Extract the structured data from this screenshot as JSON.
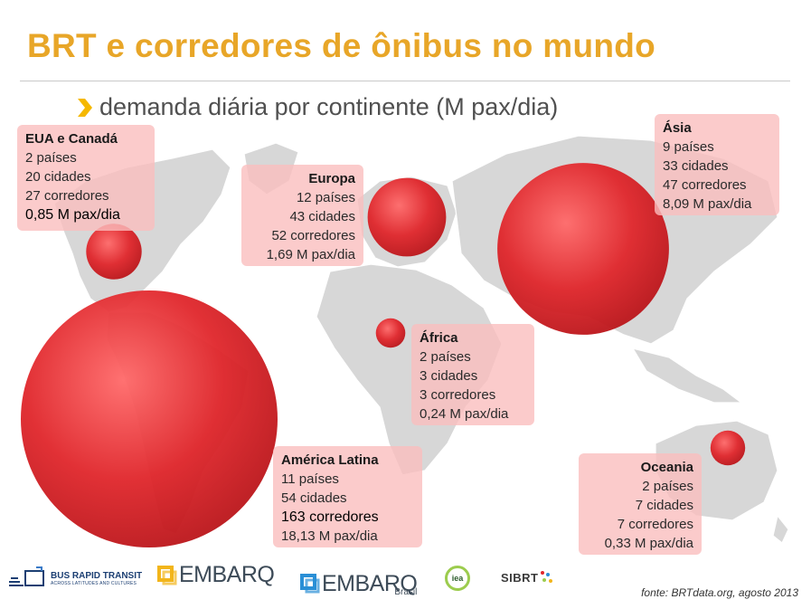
{
  "title": "BRT e corredores de ônibus no mundo",
  "subtitle": "demanda diária por continente (M pax/dia)",
  "source": "fonte: BRTdata.org, agosto 2013",
  "colors": {
    "title": "#e8a628",
    "bubble": "#e0262b",
    "label_box": "#fabebe",
    "land": "#d7d7d7"
  },
  "chart_data": {
    "type": "scatter",
    "title": "BRT e corredores de ônibus no mundo",
    "subtitle": "demanda diária por continente (M pax/dia)",
    "unit": "M pax/dia",
    "series": [
      {
        "name": "EUA e Canadá",
        "lines": [
          "2 países",
          "20 cidades",
          "27 corredores",
          "0,85 M pax/dia"
        ],
        "value": 0.85
      },
      {
        "name": "Europa",
        "lines": [
          "12 países",
          "43 cidades",
          "52 corredores",
          "1,69 M pax/dia"
        ],
        "value": 1.69
      },
      {
        "name": "Ásia",
        "lines": [
          "9 países",
          "33 cidades",
          "47 corredores",
          "8,09 M pax/dia"
        ],
        "value": 8.09
      },
      {
        "name": "África",
        "lines": [
          "2 países",
          "3 cidades",
          "3 corredores",
          "0,24 M pax/dia"
        ],
        "value": 0.24
      },
      {
        "name": "América Latina",
        "lines": [
          "11 países",
          "54 cidades",
          "163 corredores",
          "18,13 M pax/dia"
        ],
        "value": 18.13
      },
      {
        "name": "Oceania",
        "lines": [
          "2 países",
          "7 cidades",
          "7 corredores",
          "0,33 M pax/dia"
        ],
        "value": 0.33
      }
    ]
  },
  "logos": {
    "brt_line1": "BUS RAPID TRANSIT",
    "brt_line2": "ACROSS LATITUDES AND CULTURES",
    "embarq1": "EMBARQ",
    "embarq2": "EMBARQ",
    "embarq2_sub": "Brasil",
    "iea": "iea",
    "sibrt": "SIBRT"
  }
}
